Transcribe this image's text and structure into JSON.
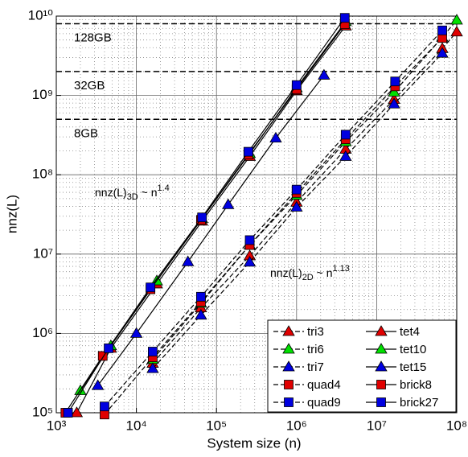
{
  "chart_data": {
    "type": "line",
    "xlabel": "System size (n)",
    "ylabel": "nnz(L)",
    "xscale": "log",
    "yscale": "log",
    "grid": true,
    "minor_grid": true,
    "legend": "lower right",
    "xlim": [
      1000,
      100000000
    ],
    "ylim": [
      100000,
      10000000000
    ],
    "xticks": [
      {
        "value": 1000,
        "label": "10³"
      },
      {
        "value": 10000,
        "label": "10⁴"
      },
      {
        "value": 100000,
        "label": "10⁵"
      },
      {
        "value": 1000000,
        "label": "10⁶"
      },
      {
        "value": 10000000,
        "label": "10⁷"
      },
      {
        "value": 100000000,
        "label": "10⁸"
      }
    ],
    "yticks": [
      {
        "value": 100000,
        "label": "10⁵"
      },
      {
        "value": 1000000,
        "label": "10⁶"
      },
      {
        "value": 10000000,
        "label": "10⁷"
      },
      {
        "value": 100000000,
        "label": "10⁸"
      },
      {
        "value": 1000000000,
        "label": "10⁹"
      },
      {
        "value": 10000000000,
        "label": "10¹⁰"
      }
    ],
    "hlines": [
      {
        "value": 8000000000,
        "label": "128GB"
      },
      {
        "value": 2000000000,
        "label": "32GB"
      },
      {
        "value": 500000000,
        "label": "8GB"
      }
    ],
    "annotations": [
      {
        "text": "nnz(L)",
        "sub": "3D",
        "mid": " ~ n",
        "sup": "1.4"
      },
      {
        "text": "nnz(L)",
        "sub": "2D",
        "mid": " ~ n",
        "sup": "1.13"
      }
    ],
    "series": [
      {
        "name": "tri3",
        "color": "#e00000",
        "marker": "triangle",
        "dashed": true,
        "x": [
          16000,
          64000,
          260000,
          1000000,
          4100000,
          16500000,
          66000000,
          100000000
        ],
        "values": [
          420000,
          2100000,
          9500000,
          45000000,
          210000000,
          890000000,
          3900000000,
          6300000000
        ]
      },
      {
        "name": "tri6",
        "color": "#00e000",
        "marker": "triangle",
        "dashed": true,
        "x": [
          16000,
          64000,
          260000,
          1000000,
          4100000,
          16500000,
          66000000,
          100000000
        ],
        "values": [
          470000,
          2400000,
          13000000,
          55000000,
          260000000,
          1100000000,
          5400000000,
          8900000000
        ]
      },
      {
        "name": "tri7",
        "color": "#0000e0",
        "marker": "triangle",
        "dashed": true,
        "x": [
          16000,
          64000,
          260000,
          1000000,
          4100000,
          16500000,
          66000000
        ],
        "values": [
          360000,
          1700000,
          7900000,
          39000000,
          170000000,
          780000000,
          3400000000
        ]
      },
      {
        "name": "quad4",
        "color": "#e00000",
        "marker": "square",
        "dashed": true,
        "x": [
          4000,
          16000,
          64000,
          260000,
          1000000,
          4100000,
          17000000,
          66000000
        ],
        "values": [
          95000,
          500000,
          2500000,
          13000000,
          59000000,
          280000000,
          1300000000,
          5300000000
        ]
      },
      {
        "name": "quad9",
        "color": "#0000e0",
        "marker": "square",
        "dashed": true,
        "x": [
          4000,
          16000,
          64000,
          260000,
          1000000,
          4100000,
          17000000,
          66000000
        ],
        "values": [
          120000,
          590000,
          2900000,
          15000000,
          65000000,
          320000000,
          1500000000,
          6600000000
        ]
      },
      {
        "name": "tet4",
        "color": "#e00000",
        "marker": "triangle",
        "dashed": false,
        "x": [
          1800,
          4800,
          18000,
          66000,
          260000,
          1000000,
          4100000
        ],
        "values": [
          100000,
          650000,
          4200000,
          26000000,
          170000000,
          1150000000,
          7500000000
        ]
      },
      {
        "name": "tet10",
        "color": "#00e000",
        "marker": "triangle",
        "dashed": false,
        "x": [
          2000,
          4800,
          18000,
          66000,
          260000,
          1000000,
          4100000
        ],
        "values": [
          190000,
          700000,
          4600000,
          28000000,
          185000000,
          1250000000,
          8500000000
        ]
      },
      {
        "name": "tet15",
        "color": "#0000e0",
        "marker": "triangle",
        "dashed": false,
        "x": [
          3300,
          10000,
          44000,
          140000,
          550000,
          2200000
        ],
        "values": [
          220000,
          1000000,
          8000000,
          42000000,
          290000000,
          1800000000
        ]
      },
      {
        "name": "brick8",
        "color": "#e00000",
        "marker": "square",
        "dashed": false,
        "x": [
          1300,
          3800,
          15000,
          64000,
          250000,
          1000000,
          4000000
        ],
        "values": [
          100000,
          520000,
          3600000,
          27000000,
          180000000,
          1200000000,
          7900000000
        ]
      },
      {
        "name": "brick27",
        "color": "#0000e0",
        "marker": "square",
        "dashed": false,
        "x": [
          1400,
          4500,
          15000,
          66000,
          250000,
          1000000,
          4000000
        ],
        "values": [
          100000,
          650000,
          3800000,
          29000000,
          195000000,
          1350000000,
          9500000000
        ]
      }
    ]
  }
}
